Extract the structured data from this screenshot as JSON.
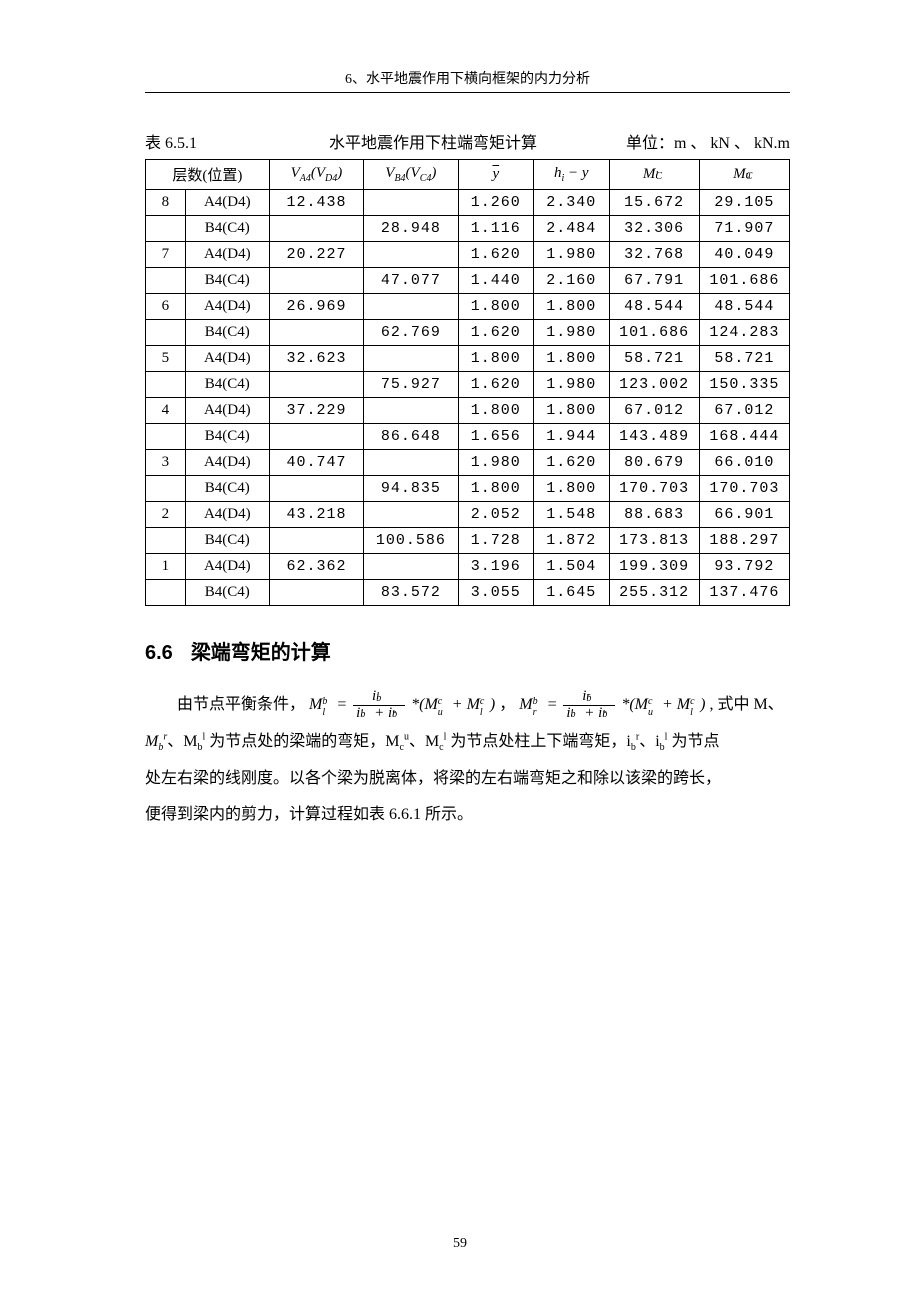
{
  "running_head": "6、水平地震作用下横向框架的内力分析",
  "page_number": "59",
  "table": {
    "number": "表 6.5.1",
    "title": "水平地震作用下柱端弯矩计算",
    "units_label_cn": "单位：",
    "units_symbols": "m 、 kN 、 kN.m",
    "columns": {
      "floor_pos": "层数(位置)",
      "va": "V",
      "va_sub": "A4",
      "va_paren": "(V",
      "va_paren_sub": "D4",
      "va_paren_end": ")",
      "vb": "V",
      "vb_sub": "B4",
      "vb_paren": "(V",
      "vb_paren_sub": "C4",
      "vb_paren_end": ")",
      "y": "y",
      "hy": "h",
      "hy_sub": "i",
      "hy_rest": " − y",
      "ml": "M",
      "ml_sub": "C",
      "ml_sup": "l",
      "mu": "M",
      "mu_sub": "C",
      "mu_sup": "u"
    },
    "rows": [
      {
        "floor": "8",
        "pos": "A4(D4)",
        "va": "12.438",
        "vb": "",
        "y": "1.260",
        "hy": "2.340",
        "ml": "15.672",
        "mu": "29.105"
      },
      {
        "floor": "",
        "pos": "B4(C4)",
        "va": "",
        "vb": "28.948",
        "y": "1.116",
        "hy": "2.484",
        "ml": "32.306",
        "mu": "71.907"
      },
      {
        "floor": "7",
        "pos": "A4(D4)",
        "va": "20.227",
        "vb": "",
        "y": "1.620",
        "hy": "1.980",
        "ml": "32.768",
        "mu": "40.049"
      },
      {
        "floor": "",
        "pos": "B4(C4)",
        "va": "",
        "vb": "47.077",
        "y": "1.440",
        "hy": "2.160",
        "ml": "67.791",
        "mu": "101.686"
      },
      {
        "floor": "6",
        "pos": "A4(D4)",
        "va": "26.969",
        "vb": "",
        "y": "1.800",
        "hy": "1.800",
        "ml": "48.544",
        "mu": "48.544"
      },
      {
        "floor": "",
        "pos": "B4(C4)",
        "va": "",
        "vb": "62.769",
        "y": "1.620",
        "hy": "1.980",
        "ml": "101.686",
        "mu": "124.283"
      },
      {
        "floor": "5",
        "pos": "A4(D4)",
        "va": "32.623",
        "vb": "",
        "y": "1.800",
        "hy": "1.800",
        "ml": "58.721",
        "mu": "58.721"
      },
      {
        "floor": "",
        "pos": "B4(C4)",
        "va": "",
        "vb": "75.927",
        "y": "1.620",
        "hy": "1.980",
        "ml": "123.002",
        "mu": "150.335"
      },
      {
        "floor": "4",
        "pos": "A4(D4)",
        "va": "37.229",
        "vb": "",
        "y": "1.800",
        "hy": "1.800",
        "ml": "67.012",
        "mu": "67.012"
      },
      {
        "floor": "",
        "pos": "B4(C4)",
        "va": "",
        "vb": "86.648",
        "y": "1.656",
        "hy": "1.944",
        "ml": "143.489",
        "mu": "168.444"
      },
      {
        "floor": "3",
        "pos": "A4(D4)",
        "va": "40.747",
        "vb": "",
        "y": "1.980",
        "hy": "1.620",
        "ml": "80.679",
        "mu": "66.010"
      },
      {
        "floor": "",
        "pos": "B4(C4)",
        "va": "",
        "vb": "94.835",
        "y": "1.800",
        "hy": "1.800",
        "ml": "170.703",
        "mu": "170.703"
      },
      {
        "floor": "2",
        "pos": "A4(D4)",
        "va": "43.218",
        "vb": "",
        "y": "2.052",
        "hy": "1.548",
        "ml": "88.683",
        "mu": "66.901"
      },
      {
        "floor": "",
        "pos": "B4(C4)",
        "va": "",
        "vb": "100.586",
        "y": "1.728",
        "hy": "1.872",
        "ml": "173.813",
        "mu": "188.297"
      },
      {
        "floor": "1",
        "pos": "A4(D4)",
        "va": "62.362",
        "vb": "",
        "y": "3.196",
        "hy": "1.504",
        "ml": "199.309",
        "mu": "93.792"
      },
      {
        "floor": "",
        "pos": "B4(C4)",
        "va": "",
        "vb": "83.572",
        "y": "3.055",
        "hy": "1.645",
        "ml": "255.312",
        "mu": "137.476"
      }
    ]
  },
  "section": {
    "number": "6.6",
    "title": "梁端弯矩的计算"
  },
  "para": {
    "lead": "由节点平衡条件，",
    "eq_mid": "，",
    "eq_tail": " , 式中 M、",
    "line2a": "M",
    "line2a_sub": "b",
    "line2a_sup": "r",
    "line2b": "、M",
    "line2b_sub": "b",
    "line2b_sup": "l",
    "line2c": " 为节点处的梁端的弯矩，M",
    "line2c_sub": "c",
    "line2c_sup": "u",
    "line2d": "、M",
    "line2d_sub": "c",
    "line2d_sup": "l",
    "line2e": " 为节点处柱上下端弯矩，i",
    "line2e_sub": "b",
    "line2e_sup": "r",
    "line2f": "、i",
    "line2f_sub": "b",
    "line2f_sup": "l",
    "line2g": " 为节点",
    "line3": "处左右梁的线刚度。以各个梁为脱离体，将梁的左右端弯矩之和除以该梁的跨长，",
    "line4": "便得到梁内的剪力，计算过程如表 6.6.1 所示。"
  },
  "formula": {
    "Mbl_lhs_base": "M",
    "Mbl_lhs_sub": "b",
    "Mbl_lhs_sup": "l",
    "Mbr_lhs_base": "M",
    "Mbr_lhs_sub": "b",
    "Mbr_lhs_sup": "r",
    "eq": " = ",
    "frac_num_l": "i",
    "frac_num_l_sub": "b",
    "frac_num_l_sup": "l",
    "frac_num_r_sup": "r",
    "frac_den_a": "i",
    "frac_den_a_sub": "b",
    "frac_den_a_sup": "l",
    "frac_den_plus": " + ",
    "frac_den_b": "i",
    "frac_den_b_sub": "b",
    "frac_den_b_sup": "r",
    "star": " *(",
    "Mc_u_base": "M",
    "Mc_sub": "c",
    "Mc_u_sup": "u",
    "plus": " + ",
    "Mc_l_sup": "l",
    "close": ")"
  }
}
